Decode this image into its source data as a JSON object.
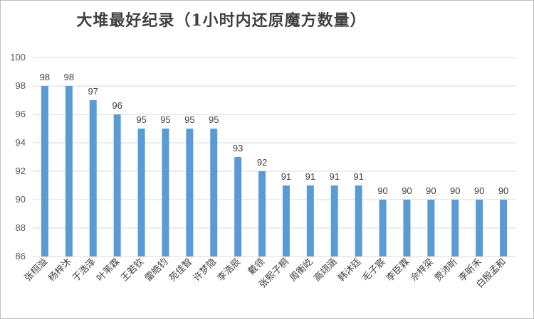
{
  "chart_data": {
    "type": "bar",
    "title": "大堆最好纪录（1小时内还原魔方数量）",
    "xlabel": "",
    "ylabel": "",
    "ylim": [
      86,
      100
    ],
    "yticks": [
      86,
      88,
      90,
      92,
      94,
      96,
      98,
      100
    ],
    "grid": true,
    "bar_color": "#5B9BD5",
    "categories": [
      "张栩溢",
      "杨梓沐",
      "于浩泽",
      "叶苇霖",
      "王若钦",
      "雷皓钧",
      "苑佳智",
      "许梦隐",
      "李浩辰",
      "戴领",
      "张熙子桐",
      "周衡屹",
      "高翊涵",
      "韩沐廷",
      "毛子宸",
      "李臣霖",
      "佘梓梁",
      "贾沛昕",
      "李昕禾",
      "白殷孟和"
    ],
    "values": [
      98,
      98,
      97,
      96,
      95,
      95,
      95,
      95,
      93,
      92,
      91,
      91,
      91,
      91,
      90,
      90,
      90,
      90,
      90,
      90
    ]
  }
}
